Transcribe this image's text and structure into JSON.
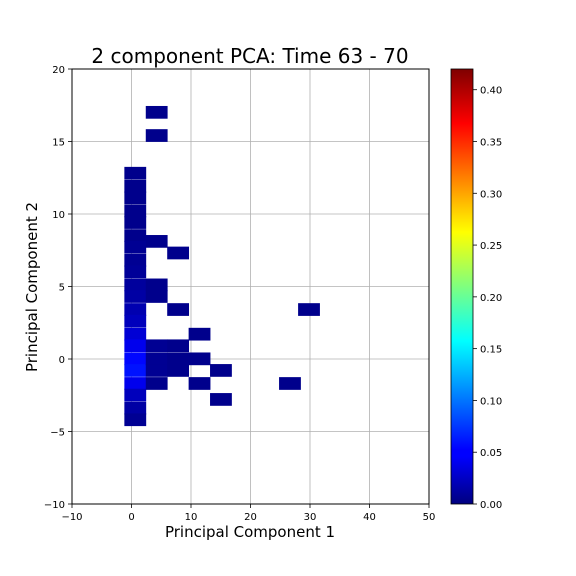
{
  "chart_data": {
    "type": "heatmap",
    "title": "2 component PCA: Time 63 - 70",
    "xlabel": "Principal Component 1",
    "ylabel": "Principal Component 2",
    "xlim": [
      -10,
      50
    ],
    "ylim": [
      -10,
      20
    ],
    "x_ticks": [
      "−10",
      "0",
      "10",
      "20",
      "30",
      "40",
      "50"
    ],
    "y_ticks": [
      "−10",
      "−5",
      "0",
      "5",
      "10",
      "15",
      "20"
    ],
    "grid": true,
    "colorbar": {
      "colormap": "jet",
      "range": [
        0,
        0.42
      ],
      "ticks": [
        "0.00",
        "0.05",
        "0.10",
        "0.15",
        "0.20",
        "0.25",
        "0.30",
        "0.35",
        "0.40"
      ]
    },
    "bin_width": 3.6,
    "bin_height": 0.85,
    "cells": [
      {
        "x0": -1.2,
        "y0": 12.4,
        "value": 0.005
      },
      {
        "x0": -1.2,
        "y0": 11.5,
        "value": 0.005
      },
      {
        "x0": -1.2,
        "y0": 10.7,
        "value": 0.005
      },
      {
        "x0": -1.2,
        "y0": 9.8,
        "value": 0.005
      },
      {
        "x0": -1.2,
        "y0": 9.0,
        "value": 0.005
      },
      {
        "x0": -1.2,
        "y0": 8.1,
        "value": 0.005
      },
      {
        "x0": -1.2,
        "y0": 7.3,
        "value": 0.008
      },
      {
        "x0": -1.2,
        "y0": 6.4,
        "value": 0.008
      },
      {
        "x0": -1.2,
        "y0": 5.6,
        "value": 0.01
      },
      {
        "x0": -1.2,
        "y0": 4.7,
        "value": 0.012
      },
      {
        "x0": -1.2,
        "y0": 3.9,
        "value": 0.015
      },
      {
        "x0": -1.2,
        "y0": 3.0,
        "value": 0.02
      },
      {
        "x0": -1.2,
        "y0": 2.2,
        "value": 0.025
      },
      {
        "x0": -1.2,
        "y0": 1.3,
        "value": 0.035
      },
      {
        "x0": -1.2,
        "y0": 0.5,
        "value": 0.045
      },
      {
        "x0": -1.2,
        "y0": -0.4,
        "value": 0.055
      },
      {
        "x0": -1.2,
        "y0": -1.2,
        "value": 0.06
      },
      {
        "x0": -1.2,
        "y0": -2.1,
        "value": 0.045
      },
      {
        "x0": -1.2,
        "y0": -2.9,
        "value": 0.025
      },
      {
        "x0": -1.2,
        "y0": -3.8,
        "value": 0.015
      },
      {
        "x0": -1.2,
        "y0": -4.6,
        "value": 0.008
      },
      {
        "x0": 2.4,
        "y0": 16.6,
        "value": 0.005
      },
      {
        "x0": 2.4,
        "y0": 15.0,
        "value": 0.005
      },
      {
        "x0": 2.4,
        "y0": 7.7,
        "value": 0.005
      },
      {
        "x0": 6.0,
        "y0": 6.9,
        "value": 0.005
      },
      {
        "x0": 2.4,
        "y0": 4.7,
        "value": 0.005
      },
      {
        "x0": 2.4,
        "y0": 3.9,
        "value": 0.005
      },
      {
        "x0": 6.0,
        "y0": 3.0,
        "value": 0.005
      },
      {
        "x0": 9.6,
        "y0": 1.3,
        "value": 0.005
      },
      {
        "x0": 2.4,
        "y0": 0.5,
        "value": 0.008
      },
      {
        "x0": 6.0,
        "y0": 0.5,
        "value": 0.005
      },
      {
        "x0": 2.4,
        "y0": -0.4,
        "value": 0.008
      },
      {
        "x0": 6.0,
        "y0": -0.4,
        "value": 0.005
      },
      {
        "x0": 9.6,
        "y0": -0.4,
        "value": 0.005
      },
      {
        "x0": 2.4,
        "y0": -1.2,
        "value": 0.008
      },
      {
        "x0": 6.0,
        "y0": -1.2,
        "value": 0.005
      },
      {
        "x0": 13.2,
        "y0": -1.2,
        "value": 0.005
      },
      {
        "x0": 2.4,
        "y0": -2.1,
        "value": 0.005
      },
      {
        "x0": 9.6,
        "y0": -2.1,
        "value": 0.005
      },
      {
        "x0": 24.8,
        "y0": -2.1,
        "value": 0.005
      },
      {
        "x0": 13.2,
        "y0": -3.2,
        "value": 0.005
      },
      {
        "x0": 28.0,
        "y0": 3.0,
        "value": 0.005
      }
    ]
  }
}
